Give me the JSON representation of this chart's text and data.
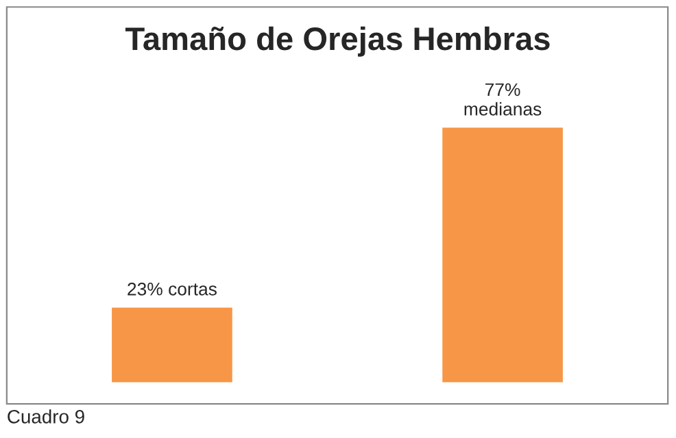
{
  "chart_data": {
    "type": "bar",
    "title": "Tamaño de Orejas Hembras",
    "categories": [
      null,
      null
    ],
    "values": [
      23,
      77
    ],
    "color": "#f79646",
    "value_labels": [
      "23% cortas",
      "77%\nmedianas"
    ],
    "annotations": [
      "Cuadro 9"
    ],
    "grid": false,
    "legend": false
  }
}
